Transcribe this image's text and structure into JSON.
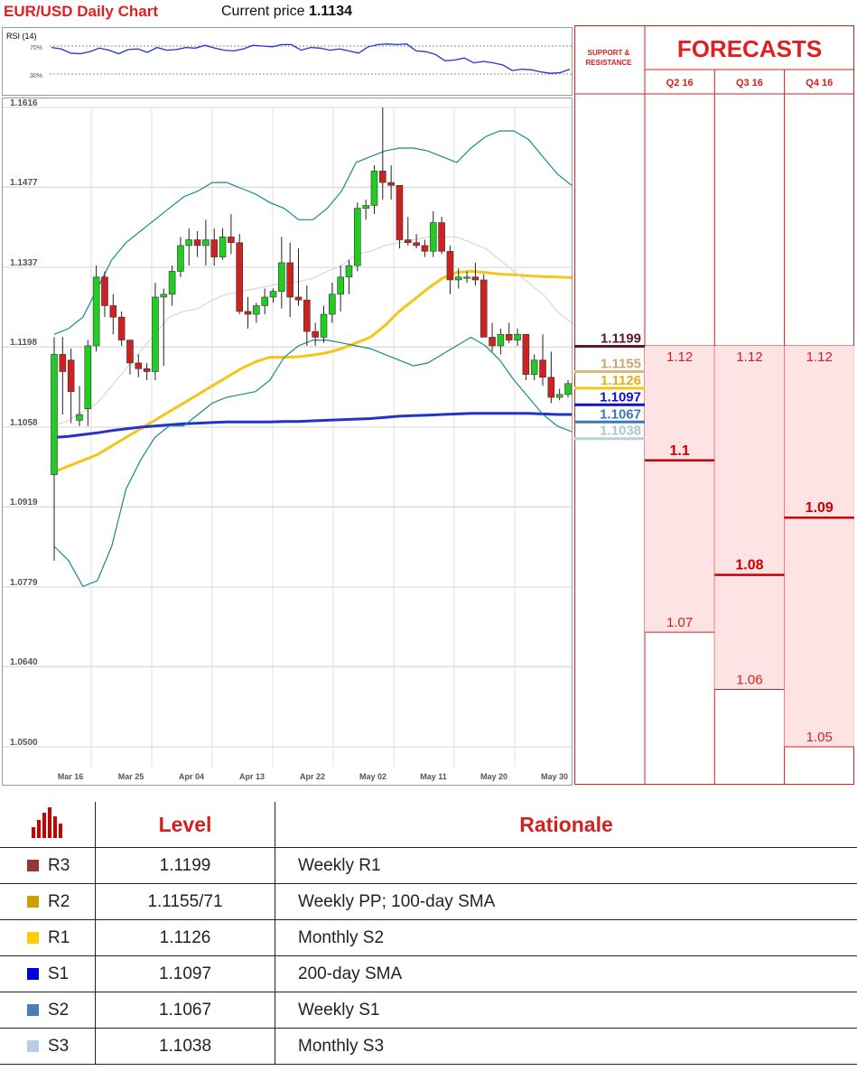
{
  "header": {
    "title": "EUR/USD Daily Chart",
    "price_prefix": "Current price",
    "price_value": "1.1134"
  },
  "rsi": {
    "label": "RSI (14)",
    "level_high": "70%",
    "level_low": "30%",
    "values": [
      68,
      66,
      60,
      59,
      62,
      67,
      64,
      59,
      65,
      66,
      61,
      68,
      64,
      65,
      68,
      67,
      71,
      67,
      64,
      63,
      66,
      71,
      70,
      69,
      72,
      72,
      64,
      68,
      67,
      64,
      66,
      63,
      60,
      69,
      72,
      73,
      72,
      73,
      63,
      62,
      58,
      49,
      50,
      53,
      46,
      48,
      46,
      43,
      35,
      37,
      36,
      33,
      31,
      32,
      37
    ]
  },
  "chart_data": {
    "type": "candlestick",
    "title": "EUR/USD Daily Chart",
    "ylim": [
      1.05,
      1.1616
    ],
    "y_ticks": [
      "1.1616",
      "1.1477",
      "1.1337",
      "1.1198",
      "1.1058",
      "1.0919",
      "1.0779",
      "1.0640",
      "1.0500"
    ],
    "y_tick_values": [
      1.1616,
      1.1477,
      1.1337,
      1.1198,
      1.1058,
      1.0919,
      1.0779,
      1.064,
      1.05
    ],
    "x_labels": [
      "Mar 16",
      "Mar 25",
      "Apr 04",
      "Apr 13",
      "Apr 22",
      "May 02",
      "May 11",
      "May 20",
      "May 30"
    ],
    "current_price": 1.1134,
    "candles": [
      {
        "o": 1.0975,
        "h": 1.1215,
        "l": 1.0825,
        "c": 1.1185
      },
      {
        "o": 1.1185,
        "h": 1.1215,
        "l": 1.108,
        "c": 1.1155
      },
      {
        "o": 1.1175,
        "h": 1.1195,
        "l": 1.1065,
        "c": 1.112
      },
      {
        "o": 1.107,
        "h": 1.113,
        "l": 1.106,
        "c": 1.108
      },
      {
        "o": 1.109,
        "h": 1.121,
        "l": 1.106,
        "c": 1.12
      },
      {
        "o": 1.12,
        "h": 1.134,
        "l": 1.119,
        "c": 1.132
      },
      {
        "o": 1.132,
        "h": 1.133,
        "l": 1.125,
        "c": 1.127
      },
      {
        "o": 1.127,
        "h": 1.129,
        "l": 1.122,
        "c": 1.125
      },
      {
        "o": 1.125,
        "h": 1.126,
        "l": 1.12,
        "c": 1.121
      },
      {
        "o": 1.121,
        "h": 1.121,
        "l": 1.115,
        "c": 1.117
      },
      {
        "o": 1.117,
        "h": 1.1185,
        "l": 1.1145,
        "c": 1.116
      },
      {
        "o": 1.116,
        "h": 1.117,
        "l": 1.114,
        "c": 1.1155
      },
      {
        "o": 1.1155,
        "h": 1.131,
        "l": 1.114,
        "c": 1.1285
      },
      {
        "o": 1.1285,
        "h": 1.13,
        "l": 1.1165,
        "c": 1.129
      },
      {
        "o": 1.129,
        "h": 1.134,
        "l": 1.127,
        "c": 1.133
      },
      {
        "o": 1.133,
        "h": 1.139,
        "l": 1.132,
        "c": 1.1375
      },
      {
        "o": 1.1375,
        "h": 1.1405,
        "l": 1.134,
        "c": 1.1385
      },
      {
        "o": 1.1385,
        "h": 1.14,
        "l": 1.1355,
        "c": 1.1375
      },
      {
        "o": 1.1375,
        "h": 1.142,
        "l": 1.134,
        "c": 1.1385
      },
      {
        "o": 1.1385,
        "h": 1.1405,
        "l": 1.134,
        "c": 1.1355
      },
      {
        "o": 1.1355,
        "h": 1.1405,
        "l": 1.135,
        "c": 1.139
      },
      {
        "o": 1.139,
        "h": 1.143,
        "l": 1.136,
        "c": 1.138
      },
      {
        "o": 1.138,
        "h": 1.1395,
        "l": 1.1255,
        "c": 1.126
      },
      {
        "o": 1.126,
        "h": 1.1285,
        "l": 1.123,
        "c": 1.1255
      },
      {
        "o": 1.1255,
        "h": 1.1275,
        "l": 1.124,
        "c": 1.127
      },
      {
        "o": 1.127,
        "h": 1.13,
        "l": 1.1255,
        "c": 1.1285
      },
      {
        "o": 1.1285,
        "h": 1.13,
        "l": 1.1275,
        "c": 1.1295
      },
      {
        "o": 1.1295,
        "h": 1.139,
        "l": 1.1265,
        "c": 1.1345
      },
      {
        "o": 1.1345,
        "h": 1.138,
        "l": 1.125,
        "c": 1.1285
      },
      {
        "o": 1.1285,
        "h": 1.137,
        "l": 1.127,
        "c": 1.128
      },
      {
        "o": 1.128,
        "h": 1.1305,
        "l": 1.12,
        "c": 1.1225
      },
      {
        "o": 1.1225,
        "h": 1.124,
        "l": 1.12,
        "c": 1.1215
      },
      {
        "o": 1.1215,
        "h": 1.127,
        "l": 1.1205,
        "c": 1.1255
      },
      {
        "o": 1.1255,
        "h": 1.131,
        "l": 1.124,
        "c": 1.129
      },
      {
        "o": 1.129,
        "h": 1.134,
        "l": 1.126,
        "c": 1.132
      },
      {
        "o": 1.132,
        "h": 1.135,
        "l": 1.129,
        "c": 1.134
      },
      {
        "o": 1.134,
        "h": 1.145,
        "l": 1.133,
        "c": 1.144
      },
      {
        "o": 1.144,
        "h": 1.1455,
        "l": 1.142,
        "c": 1.1445
      },
      {
        "o": 1.1445,
        "h": 1.1515,
        "l": 1.143,
        "c": 1.1505
      },
      {
        "o": 1.1505,
        "h": 1.1616,
        "l": 1.1455,
        "c": 1.1485
      },
      {
        "o": 1.1485,
        "h": 1.1515,
        "l": 1.1455,
        "c": 1.148
      },
      {
        "o": 1.148,
        "h": 1.148,
        "l": 1.137,
        "c": 1.1385
      },
      {
        "o": 1.1385,
        "h": 1.1425,
        "l": 1.1375,
        "c": 1.138
      },
      {
        "o": 1.138,
        "h": 1.1395,
        "l": 1.137,
        "c": 1.1375
      },
      {
        "o": 1.1375,
        "h": 1.1385,
        "l": 1.1355,
        "c": 1.1365
      },
      {
        "o": 1.1365,
        "h": 1.1435,
        "l": 1.1355,
        "c": 1.1415
      },
      {
        "o": 1.1415,
        "h": 1.1425,
        "l": 1.136,
        "c": 1.1365
      },
      {
        "o": 1.1365,
        "h": 1.1375,
        "l": 1.129,
        "c": 1.1315
      },
      {
        "o": 1.1315,
        "h": 1.1335,
        "l": 1.13,
        "c": 1.132
      },
      {
        "o": 1.132,
        "h": 1.133,
        "l": 1.131,
        "c": 1.132
      },
      {
        "o": 1.132,
        "h": 1.1345,
        "l": 1.1305,
        "c": 1.1315
      },
      {
        "o": 1.1315,
        "h": 1.1325,
        "l": 1.1215,
        "c": 1.1215
      },
      {
        "o": 1.1215,
        "h": 1.124,
        "l": 1.119,
        "c": 1.12
      },
      {
        "o": 1.12,
        "h": 1.123,
        "l": 1.1185,
        "c": 1.122
      },
      {
        "o": 1.122,
        "h": 1.124,
        "l": 1.1205,
        "c": 1.121
      },
      {
        "o": 1.121,
        "h": 1.123,
        "l": 1.12,
        "c": 1.122
      },
      {
        "o": 1.122,
        "h": 1.1215,
        "l": 1.114,
        "c": 1.115
      },
      {
        "o": 1.115,
        "h": 1.1185,
        "l": 1.114,
        "c": 1.1175
      },
      {
        "o": 1.1175,
        "h": 1.122,
        "l": 1.113,
        "c": 1.1145
      },
      {
        "o": 1.1145,
        "h": 1.119,
        "l": 1.11,
        "c": 1.111
      },
      {
        "o": 1.111,
        "h": 1.1125,
        "l": 1.1105,
        "c": 1.1115
      },
      {
        "o": 1.1115,
        "h": 1.114,
        "l": 1.111,
        "c": 1.1134
      }
    ],
    "series": [
      {
        "color": "#f5c518",
        "values": [
          1.098,
          1.099,
          1.1,
          1.101,
          1.1025,
          1.104,
          1.1055,
          1.107,
          1.1085,
          1.11,
          1.1115,
          1.113,
          1.1145,
          1.116,
          1.1172,
          1.118,
          1.118,
          1.1181,
          1.1184,
          1.1188,
          1.1195,
          1.1205,
          1.1215,
          1.1235,
          1.126,
          1.128,
          1.13,
          1.1318,
          1.1328,
          1.133,
          1.1328,
          1.1325,
          1.1324,
          1.1322,
          1.1321,
          1.132,
          1.1319
        ]
      },
      {
        "color": "#2233cc",
        "values": [
          1.104,
          1.1042,
          1.1045,
          1.1048,
          1.1052,
          1.1055,
          1.1058,
          1.106,
          1.1062,
          1.1064,
          1.1065,
          1.1066,
          1.1067,
          1.1067,
          1.1067,
          1.1067,
          1.1068,
          1.1068,
          1.1069,
          1.107,
          1.1071,
          1.1072,
          1.1073,
          1.1075,
          1.1077,
          1.1078,
          1.1079,
          1.108,
          1.1081,
          1.1082,
          1.1082,
          1.1082,
          1.1082,
          1.1082,
          1.1081,
          1.108,
          1.108
        ]
      },
      {
        "color": "#1a8a8a",
        "values": [
          1.122,
          1.123,
          1.125,
          1.13,
          1.135,
          1.138,
          1.14,
          1.142,
          1.144,
          1.146,
          1.147,
          1.1485,
          1.1485,
          1.1475,
          1.1465,
          1.145,
          1.144,
          1.142,
          1.142,
          1.144,
          1.147,
          1.152,
          1.153,
          1.154,
          1.1545,
          1.1545,
          1.154,
          1.153,
          1.152,
          1.1545,
          1.1565,
          1.1575,
          1.1575,
          1.156,
          1.153,
          1.15,
          1.148
        ]
      },
      {
        "color": "#1a8a8a",
        "values": [
          1.085,
          1.0825,
          1.078,
          1.079,
          1.085,
          1.095,
          1.1,
          1.104,
          1.106,
          1.106,
          1.108,
          1.11,
          1.111,
          1.1115,
          1.112,
          1.114,
          1.118,
          1.12,
          1.121,
          1.121,
          1.1205,
          1.12,
          1.1195,
          1.1185,
          1.1175,
          1.1165,
          1.117,
          1.1185,
          1.12,
          1.1215,
          1.12,
          1.1175,
          1.114,
          1.111,
          1.108,
          1.106,
          1.105
        ]
      },
      {
        "color": "#d8d8d8",
        "values": [
          1.106,
          1.107,
          1.1085,
          1.11,
          1.113,
          1.116,
          1.119,
          1.122,
          1.125,
          1.126,
          1.1265,
          1.128,
          1.129,
          1.1295,
          1.13,
          1.1305,
          1.131,
          1.1312,
          1.1318,
          1.133,
          1.134,
          1.136,
          1.1365,
          1.1375,
          1.138,
          1.1385,
          1.139,
          1.139,
          1.139,
          1.138,
          1.137,
          1.135,
          1.133,
          1.131,
          1.129,
          1.126,
          1.124
        ]
      }
    ]
  },
  "support_resistance": {
    "heading_line1": "SUPPORT &",
    "heading_line2": "RESISTANCE",
    "levels": [
      {
        "label": "1.1199",
        "value": 1.1199,
        "color": "#5a1a2a",
        "text_color": "#5a1a2a"
      },
      {
        "label": "1.1155",
        "value": 1.1155,
        "color": "#d8b880",
        "text_color": "#c8a870"
      },
      {
        "label": "1.1126",
        "value": 1.1126,
        "color": "#f5c518",
        "text_color": "#e0b010"
      },
      {
        "label": "1.1097",
        "value": 1.1097,
        "color": "#1010d0",
        "text_color": "#1010d0"
      },
      {
        "label": "1.1067",
        "value": 1.1067,
        "color": "#3a7ab0",
        "text_color": "#3a7ab0"
      },
      {
        "label": "1.1038",
        "value": 1.1038,
        "color": "#b8d0d8",
        "text_color": "#a8c8c8"
      }
    ]
  },
  "forecasts": {
    "title": "FORECASTS",
    "columns": [
      {
        "label": "Q2 16",
        "high": "1.12",
        "high_v": 1.12,
        "mid": "1.1",
        "mid_v": 1.1,
        "low": "1.07",
        "low_v": 1.07
      },
      {
        "label": "Q3 16",
        "high": "1.12",
        "high_v": 1.12,
        "mid": "1.08",
        "mid_v": 1.08,
        "low": "1.06",
        "low_v": 1.06
      },
      {
        "label": "Q4 16",
        "high": "1.12",
        "high_v": 1.12,
        "mid": "1.09",
        "mid_v": 1.09,
        "low": "1.05",
        "low_v": 1.05
      }
    ]
  },
  "table": {
    "header_level": "Level",
    "header_rationale": "Rationale",
    "icon": "bar-chart-icon",
    "rows": [
      {
        "name": "R3",
        "level": "1.1199",
        "rationale": "Weekly R1",
        "color": "#953735"
      },
      {
        "name": "R2",
        "level": "1.1155/71",
        "rationale": "Weekly PP; 100-day SMA",
        "color": "#c9a000"
      },
      {
        "name": "R1",
        "level": "1.1126",
        "rationale": "Monthly S2",
        "color": "#ffcc00"
      },
      {
        "name": "S1",
        "level": "1.1097",
        "rationale": "200-day SMA",
        "color": "#0000dd"
      },
      {
        "name": "S2",
        "level": "1.1067",
        "rationale": "Weekly S1",
        "color": "#4a7eb8"
      },
      {
        "name": "S3",
        "level": "1.1038",
        "rationale": "Monthly S3",
        "color": "#b8cce4"
      }
    ]
  },
  "colors": {
    "accent_red": "#e02020",
    "bull": "#22cc22",
    "bear": "#cc2222",
    "forecast_fill": "#fde3e3"
  }
}
